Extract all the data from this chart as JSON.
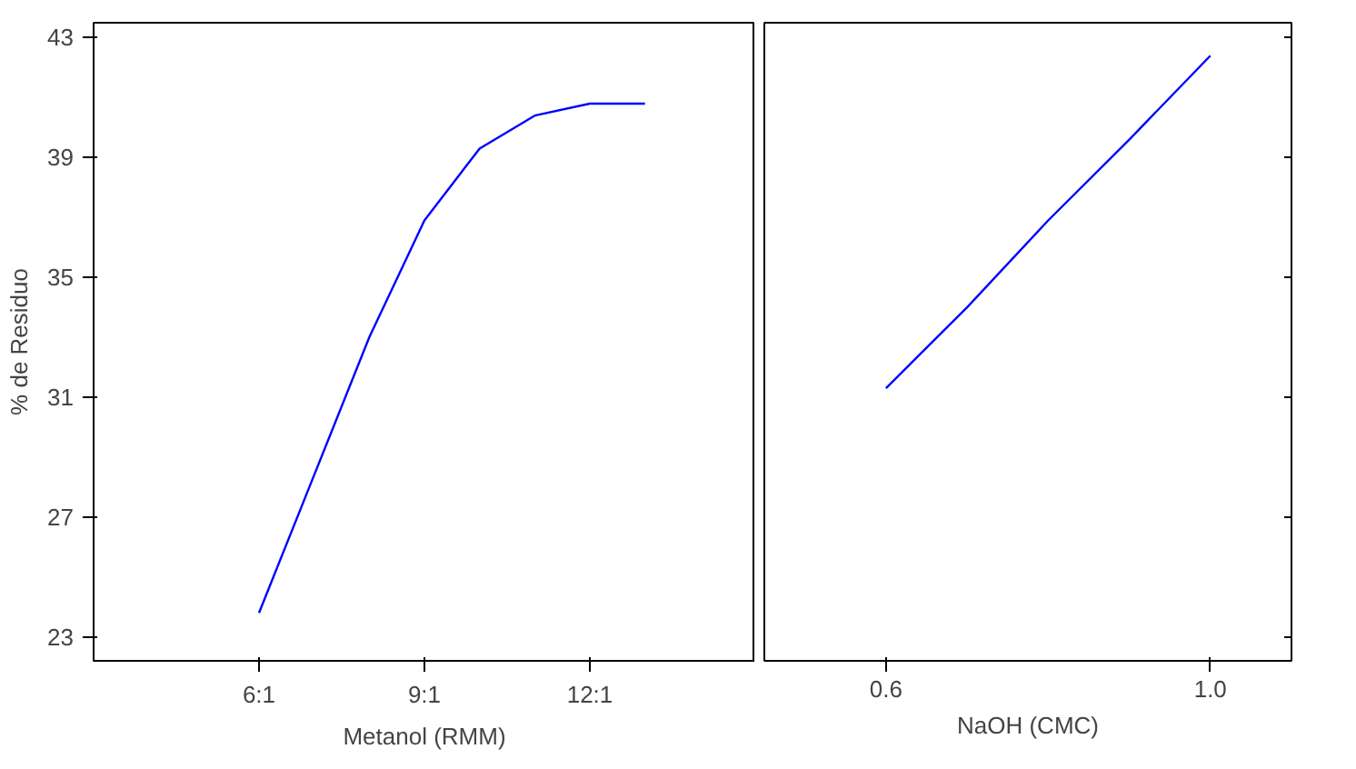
{
  "chart_data": [
    {
      "type": "line",
      "ylabel": "% de Residuo",
      "xlabel": "Metanol (RMM)",
      "categories": [
        "6:1",
        null,
        null,
        "9:1",
        null,
        null,
        "12:1",
        null
      ],
      "ylim": [
        22.2,
        43.5
      ],
      "yticks": [
        23,
        27,
        31,
        35,
        39,
        43
      ],
      "series": [
        {
          "color": "#0000ff",
          "values": [
            23.8,
            28.4,
            33.0,
            36.9,
            39.3,
            40.4,
            40.8,
            40.8
          ]
        }
      ],
      "grid": false
    },
    {
      "type": "line",
      "xlabel": "NaOH (CMC)",
      "x": [
        0.6,
        0.7,
        0.8,
        0.9,
        1.0
      ],
      "xlim": [
        0.45,
        1.1
      ],
      "xticks": [
        0.6,
        {
          "value": 1.0,
          "label": "1.0"
        }
      ],
      "ylim": [
        22.2,
        43.5
      ],
      "yticks": [
        23,
        27,
        31,
        35,
        39,
        43
      ],
      "tick_labels": "x",
      "series": [
        {
          "color": "#0000ff",
          "values": [
            31.3,
            34.0,
            36.9,
            39.6,
            42.4
          ]
        }
      ],
      "grid": false
    }
  ]
}
